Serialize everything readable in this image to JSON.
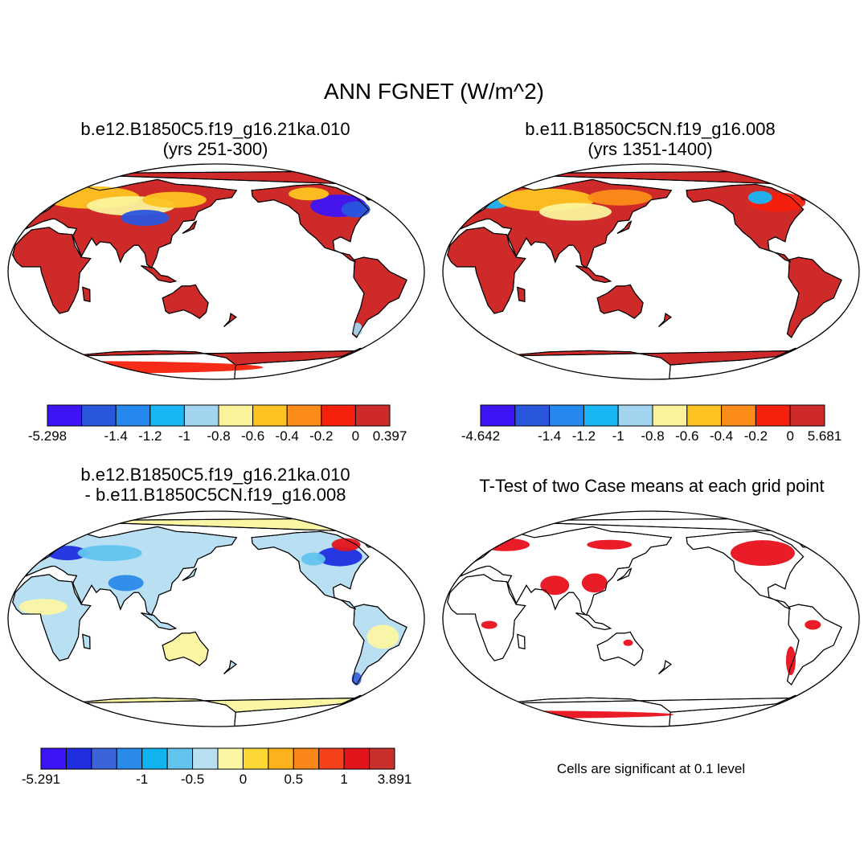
{
  "title": "ANN FGNET (W/m^2)",
  "panels": [
    {
      "id": "p1",
      "title_line1": "b.e12.B1850C5.f19_g16.21ka.010",
      "title_line2": "(yrs 251-300)",
      "colorbar": {
        "colors": [
          "#3d14f5",
          "#2a55dd",
          "#2488ef",
          "#18b6f5",
          "#a2d4ef",
          "#fbf39c",
          "#fdc321",
          "#fb8c18",
          "#f6200c",
          "#cf2a2a"
        ],
        "tick_labels": [
          "-5.298",
          "",
          "-1.4",
          "-1.2",
          "-1",
          "-0.8",
          "-0.6",
          "-0.4",
          "-0.2",
          "0",
          "0.397"
        ]
      }
    },
    {
      "id": "p2",
      "title_line1": "b.e11.B1850C5CN.f19_g16.008",
      "title_line2": "(yrs 1351-1400)",
      "colorbar": {
        "colors": [
          "#3d14f5",
          "#2a55dd",
          "#2488ef",
          "#18b6f5",
          "#a2d4ef",
          "#fbf39c",
          "#fdc321",
          "#fb8c18",
          "#f6200c",
          "#cf2a2a"
        ],
        "tick_labels": [
          "-4.642",
          "",
          "-1.4",
          "-1.2",
          "-1",
          "-0.8",
          "-0.6",
          "-0.4",
          "-0.2",
          "0",
          "5.681"
        ]
      }
    },
    {
      "id": "p3",
      "title_line1": "b.e12.B1850C5.f19_g16.21ka.010",
      "title_line2": "- b.e11.B1850C5CN.f19_g16.008",
      "colorbar": {
        "colors": [
          "#3d14f5",
          "#1e2ee0",
          "#3b64d8",
          "#2a8ae8",
          "#10b2f0",
          "#62c4ee",
          "#b9dff2",
          "#fbf6a4",
          "#fdd834",
          "#fcb21c",
          "#fa8519",
          "#f6421a",
          "#e1151a",
          "#c8302c"
        ],
        "tick_labels": [
          "-5.291",
          "",
          "-1",
          "-0.5",
          "0",
          "0.5",
          "1",
          "",
          "3.891"
        ],
        "tick_index": [
          0,
          2,
          4,
          6,
          8,
          10,
          12,
          13,
          14
        ]
      }
    },
    {
      "id": "p4",
      "title_line1": "T-Test of two Case means at each grid point",
      "note": "Cells are significant at 0.1 level"
    }
  ]
}
